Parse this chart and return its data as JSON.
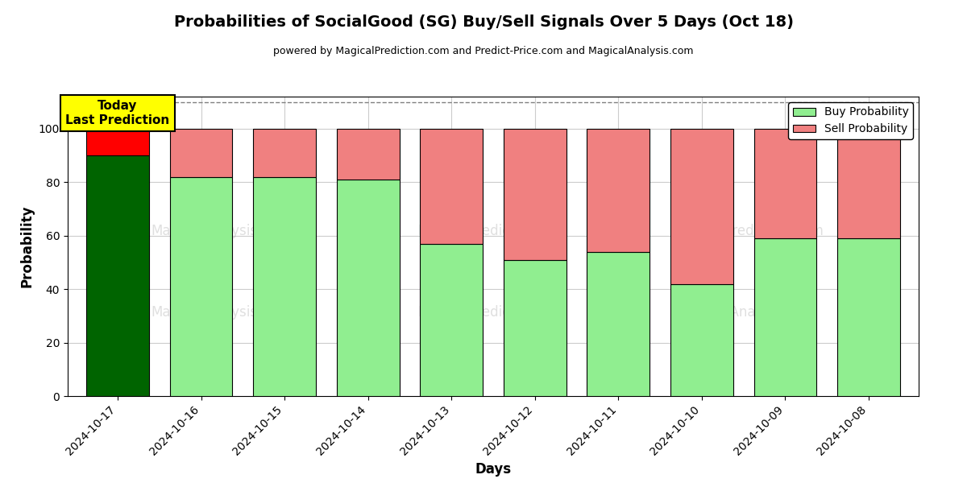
{
  "title": "Probabilities of SocialGood (SG) Buy/Sell Signals Over 5 Days (Oct 18)",
  "subtitle": "powered by MagicalPrediction.com and Predict-Price.com and MagicalAnalysis.com",
  "xlabel": "Days",
  "ylabel": "Probability",
  "dates": [
    "2024-10-17",
    "2024-10-16",
    "2024-10-15",
    "2024-10-14",
    "2024-10-13",
    "2024-10-12",
    "2024-10-11",
    "2024-10-10",
    "2024-10-09",
    "2024-10-08"
  ],
  "buy_values": [
    90,
    82,
    82,
    81,
    57,
    51,
    54,
    42,
    59,
    59
  ],
  "sell_values": [
    10,
    18,
    18,
    19,
    43,
    49,
    46,
    58,
    41,
    41
  ],
  "today_buy_color": "#006400",
  "today_sell_color": "#FF0000",
  "buy_color": "#90EE90",
  "sell_color": "#F08080",
  "today_annotation_text": "Today\nLast Prediction",
  "today_annotation_bg": "#FFFF00",
  "ylim": [
    0,
    112
  ],
  "dashed_line_y": 110,
  "legend_buy_label": "Buy Probability",
  "legend_sell_label": "Sell Probability",
  "bar_edgecolor": "black",
  "bar_linewidth": 0.8,
  "background_color": "#ffffff",
  "grid_color": "#cccccc",
  "title_fontsize": 14,
  "subtitle_fontsize": 9,
  "axis_label_fontsize": 12,
  "tick_fontsize": 10,
  "legend_fontsize": 10,
  "annotation_fontsize": 11
}
